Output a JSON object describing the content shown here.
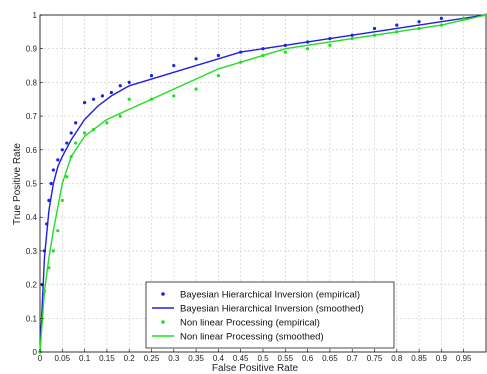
{
  "chart_data": {
    "type": "line",
    "xlabel": "False Positive Rate",
    "ylabel": "True Positive Rate",
    "xlim": [
      0,
      1
    ],
    "ylim": [
      0,
      1
    ],
    "grid": true,
    "legend_position": "bottom-right",
    "x_ticks": [
      "0",
      "0.05",
      "0.1",
      "0.15",
      "0.2",
      "0.25",
      "0.3",
      "0.35",
      "0.4",
      "0.45",
      "0.5",
      "0.55",
      "0.6",
      "0.65",
      "0.7",
      "0.75",
      "0.8",
      "0.85",
      "0.9",
      "0.95"
    ],
    "y_ticks": [
      "0",
      "0.1",
      "0.2",
      "0.3",
      "0.4",
      "0.5",
      "0.6",
      "0.7",
      "0.8",
      "0.9",
      "1"
    ],
    "series": [
      {
        "name": "Bayesian Hierarchical Inversion (empirical)",
        "style": "dots",
        "color": "#1f1fe0",
        "x": [
          0,
          0.005,
          0.01,
          0.015,
          0.02,
          0.025,
          0.03,
          0.04,
          0.05,
          0.06,
          0.07,
          0.08,
          0.1,
          0.12,
          0.14,
          0.16,
          0.18,
          0.2,
          0.25,
          0.3,
          0.35,
          0.4,
          0.45,
          0.5,
          0.55,
          0.6,
          0.65,
          0.7,
          0.75,
          0.8,
          0.85,
          0.9,
          0.95,
          1
        ],
        "y": [
          0,
          0.2,
          0.3,
          0.38,
          0.45,
          0.5,
          0.54,
          0.57,
          0.6,
          0.62,
          0.65,
          0.68,
          0.74,
          0.75,
          0.76,
          0.77,
          0.79,
          0.8,
          0.82,
          0.85,
          0.87,
          0.88,
          0.89,
          0.9,
          0.91,
          0.92,
          0.93,
          0.94,
          0.96,
          0.97,
          0.98,
          0.99,
          0.99,
          1
        ]
      },
      {
        "name": "Bayesian Hierarchical Inversion (smoothed)",
        "style": "line",
        "color": "#1f1fe0",
        "x": [
          0,
          0.01,
          0.02,
          0.03,
          0.04,
          0.05,
          0.07,
          0.1,
          0.13,
          0.16,
          0.2,
          0.25,
          0.3,
          0.35,
          0.4,
          0.45,
          0.5,
          0.55,
          0.6,
          0.65,
          0.7,
          0.75,
          0.8,
          0.85,
          0.9,
          0.95,
          1
        ],
        "y": [
          0,
          0.28,
          0.42,
          0.5,
          0.55,
          0.58,
          0.63,
          0.69,
          0.73,
          0.76,
          0.79,
          0.81,
          0.83,
          0.85,
          0.87,
          0.89,
          0.9,
          0.91,
          0.92,
          0.93,
          0.94,
          0.95,
          0.96,
          0.97,
          0.98,
          0.99,
          1
        ]
      },
      {
        "name": "Non linear Processing (empirical)",
        "style": "dots",
        "color": "#22dd22",
        "x": [
          0,
          0.005,
          0.01,
          0.02,
          0.03,
          0.04,
          0.05,
          0.06,
          0.07,
          0.08,
          0.1,
          0.12,
          0.15,
          0.18,
          0.2,
          0.25,
          0.3,
          0.35,
          0.4,
          0.45,
          0.5,
          0.55,
          0.6,
          0.65,
          0.7,
          0.75,
          0.8,
          0.85,
          0.9,
          0.95,
          1
        ],
        "y": [
          0,
          0.1,
          0.18,
          0.25,
          0.3,
          0.36,
          0.45,
          0.52,
          0.58,
          0.62,
          0.65,
          0.66,
          0.68,
          0.7,
          0.75,
          0.75,
          0.76,
          0.78,
          0.82,
          0.86,
          0.88,
          0.89,
          0.9,
          0.91,
          0.93,
          0.94,
          0.95,
          0.96,
          0.97,
          0.99,
          1
        ]
      },
      {
        "name": "Non linear Processing (smoothed)",
        "style": "line",
        "color": "#22dd22",
        "x": [
          0,
          0.01,
          0.02,
          0.03,
          0.04,
          0.05,
          0.07,
          0.1,
          0.15,
          0.2,
          0.25,
          0.3,
          0.35,
          0.4,
          0.45,
          0.5,
          0.55,
          0.6,
          0.65,
          0.7,
          0.75,
          0.8,
          0.85,
          0.9,
          0.95,
          1
        ],
        "y": [
          0,
          0.18,
          0.28,
          0.36,
          0.43,
          0.5,
          0.58,
          0.64,
          0.69,
          0.72,
          0.75,
          0.78,
          0.81,
          0.84,
          0.86,
          0.88,
          0.9,
          0.91,
          0.92,
          0.93,
          0.94,
          0.95,
          0.96,
          0.97,
          0.985,
          1
        ]
      }
    ]
  }
}
